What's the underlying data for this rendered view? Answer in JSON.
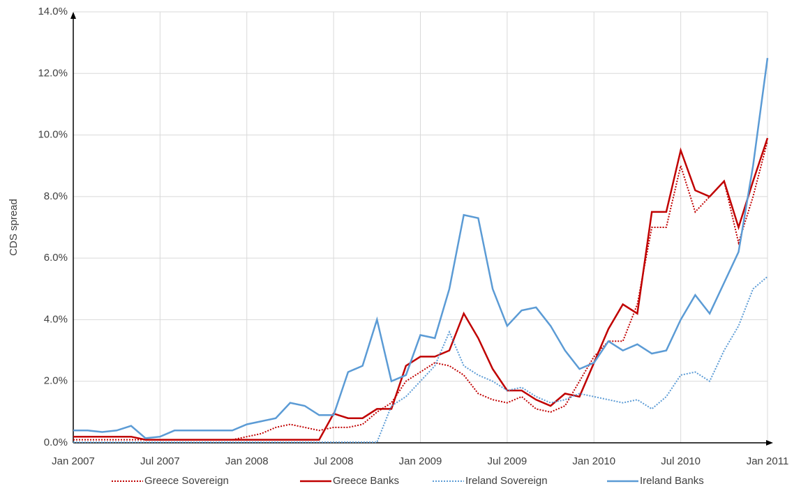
{
  "chart_data": {
    "type": "line",
    "y_label": "CDS spread",
    "x": [
      "2007-01",
      "2007-02",
      "2007-03",
      "2007-04",
      "2007-05",
      "2007-06",
      "2007-07",
      "2007-08",
      "2007-09",
      "2007-10",
      "2007-11",
      "2007-12",
      "2008-01",
      "2008-02",
      "2008-03",
      "2008-04",
      "2008-05",
      "2008-06",
      "2008-07",
      "2008-08",
      "2008-09",
      "2008-10",
      "2008-11",
      "2008-12",
      "2009-01",
      "2009-02",
      "2009-03",
      "2009-04",
      "2009-05",
      "2009-06",
      "2009-07",
      "2009-08",
      "2009-09",
      "2009-10",
      "2009-11",
      "2009-12",
      "2010-01",
      "2010-02",
      "2010-03",
      "2010-04",
      "2010-05",
      "2010-06",
      "2010-07",
      "2010-08",
      "2010-09",
      "2010-10",
      "2010-11",
      "2010-12",
      "2011-01"
    ],
    "xlim": [
      "2007-01",
      "2011-01"
    ],
    "xticks": [
      {
        "value": "2007-01",
        "label": "Jan 2007"
      },
      {
        "value": "2007-07",
        "label": "Jul 2007"
      },
      {
        "value": "2008-01",
        "label": "Jan 2008"
      },
      {
        "value": "2008-07",
        "label": "Jul 2008"
      },
      {
        "value": "2009-01",
        "label": "Jan 2009"
      },
      {
        "value": "2009-07",
        "label": "Jul 2009"
      },
      {
        "value": "2010-01",
        "label": "Jan 2010"
      },
      {
        "value": "2010-07",
        "label": "Jul 2010"
      },
      {
        "value": "2011-01",
        "label": "Jan 2011"
      }
    ],
    "ylim": [
      0,
      14
    ],
    "yticks": [
      {
        "value": 0,
        "label": "0.0%"
      },
      {
        "value": 2,
        "label": "2.0%"
      },
      {
        "value": 4,
        "label": "4.0%"
      },
      {
        "value": 6,
        "label": "6.0%"
      },
      {
        "value": 8,
        "label": "8.0%"
      },
      {
        "value": 10,
        "label": "10.0%"
      },
      {
        "value": 12,
        "label": "12.0%"
      },
      {
        "value": 14,
        "label": "14.0%"
      }
    ],
    "grid": true,
    "legend": "bottom",
    "series": [
      {
        "name": "Greece Sovereign",
        "color": "#c00000",
        "line_style": "dotted",
        "values": [
          0.1,
          0.1,
          0.1,
          0.1,
          0.1,
          0.1,
          0.1,
          0.1,
          0.1,
          0.1,
          0.1,
          0.1,
          0.2,
          0.3,
          0.5,
          0.6,
          0.5,
          0.4,
          0.5,
          0.5,
          0.6,
          1.0,
          1.3,
          2.0,
          2.3,
          2.6,
          2.5,
          2.2,
          1.6,
          1.4,
          1.3,
          1.5,
          1.1,
          1.0,
          1.2,
          2.0,
          2.8,
          3.3,
          3.3,
          4.5,
          7.0,
          7.0,
          9.0,
          7.5,
          8.0,
          8.5,
          6.5,
          8.0,
          9.8
        ]
      },
      {
        "name": "Greece Banks",
        "color": "#c00000",
        "line_style": "solid",
        "values": [
          0.2,
          0.2,
          0.2,
          0.2,
          0.2,
          0.1,
          0.1,
          0.1,
          0.1,
          0.1,
          0.1,
          0.1,
          0.1,
          0.1,
          0.1,
          0.1,
          0.1,
          0.1,
          0.95,
          0.8,
          0.8,
          1.1,
          1.1,
          2.5,
          2.8,
          2.8,
          3.0,
          4.2,
          3.4,
          2.4,
          1.7,
          1.7,
          1.4,
          1.2,
          1.6,
          1.5,
          2.6,
          3.7,
          4.5,
          4.2,
          7.5,
          7.5,
          9.5,
          8.2,
          8.0,
          8.5,
          7.0,
          8.5,
          9.9
        ]
      },
      {
        "name": "Ireland Sovereign",
        "color": "#5b9bd5",
        "line_style": "dotted",
        "values": [
          0.02,
          0.02,
          0.02,
          0.02,
          0.02,
          0.02,
          0.02,
          0.02,
          0.02,
          0.02,
          0.02,
          0.02,
          0.02,
          0.02,
          0.02,
          0.02,
          0.02,
          0.02,
          0.02,
          0.02,
          0.02,
          0.02,
          1.2,
          1.5,
          2.0,
          2.5,
          3.6,
          2.5,
          2.2,
          2.0,
          1.7,
          1.8,
          1.5,
          1.3,
          1.4,
          1.6,
          1.5,
          1.4,
          1.3,
          1.4,
          1.1,
          1.5,
          2.2,
          2.3,
          2.0,
          3.0,
          3.8,
          5.0,
          5.4
        ]
      },
      {
        "name": "Ireland Banks",
        "color": "#5b9bd5",
        "line_style": "solid",
        "values": [
          0.4,
          0.4,
          0.35,
          0.4,
          0.55,
          0.15,
          0.2,
          0.4,
          0.4,
          0.4,
          0.4,
          0.4,
          0.6,
          0.7,
          0.8,
          1.3,
          1.2,
          0.9,
          0.9,
          2.3,
          2.5,
          4.0,
          2.0,
          2.2,
          3.5,
          3.4,
          5.0,
          7.4,
          7.3,
          5.0,
          3.8,
          4.3,
          4.4,
          3.8,
          3.0,
          2.4,
          2.6,
          3.3,
          3.0,
          3.2,
          2.9,
          3.0,
          4.0,
          4.8,
          4.2,
          5.2,
          6.2,
          9.0,
          12.5
        ]
      }
    ]
  }
}
